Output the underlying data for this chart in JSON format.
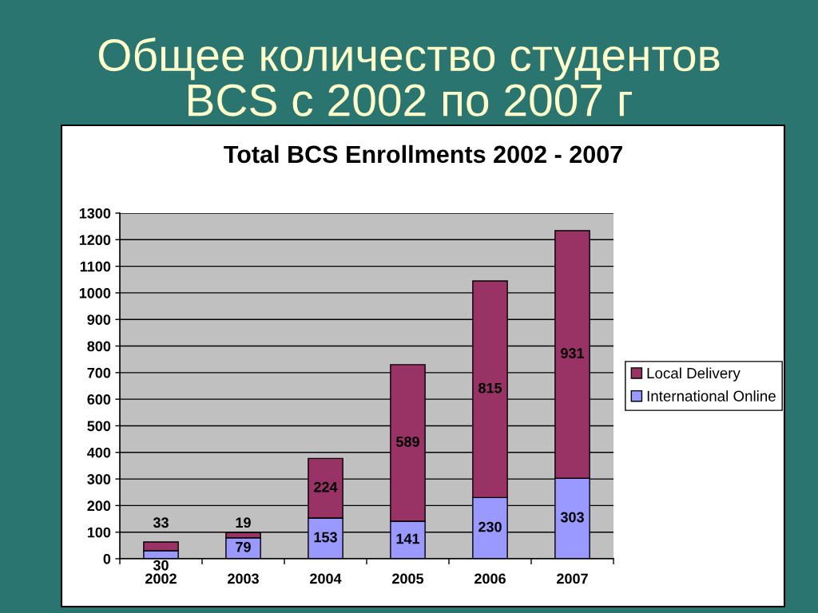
{
  "chart_data": {
    "type": "bar",
    "title": "Общее количество студентов\nBCS с 2002 по 2007 г",
    "subtitle": "Total BCS Enrollments 2002 - 2007",
    "categories": [
      "2002",
      "2003",
      "2004",
      "2005",
      "2006",
      "2007"
    ],
    "series": [
      {
        "name": "International Online",
        "color": "#9999ff",
        "values": [
          30,
          79,
          153,
          141,
          230,
          303
        ]
      },
      {
        "name": "Local Delivery",
        "color": "#993366",
        "values": [
          33,
          19,
          224,
          589,
          815,
          931
        ]
      }
    ],
    "stacked": true,
    "ylim": [
      0,
      1300
    ],
    "yticks": [
      0,
      100,
      200,
      300,
      400,
      500,
      600,
      700,
      800,
      900,
      1000,
      1100,
      1200,
      1300
    ],
    "grid": "y",
    "legend": "right",
    "data_labels": true
  }
}
